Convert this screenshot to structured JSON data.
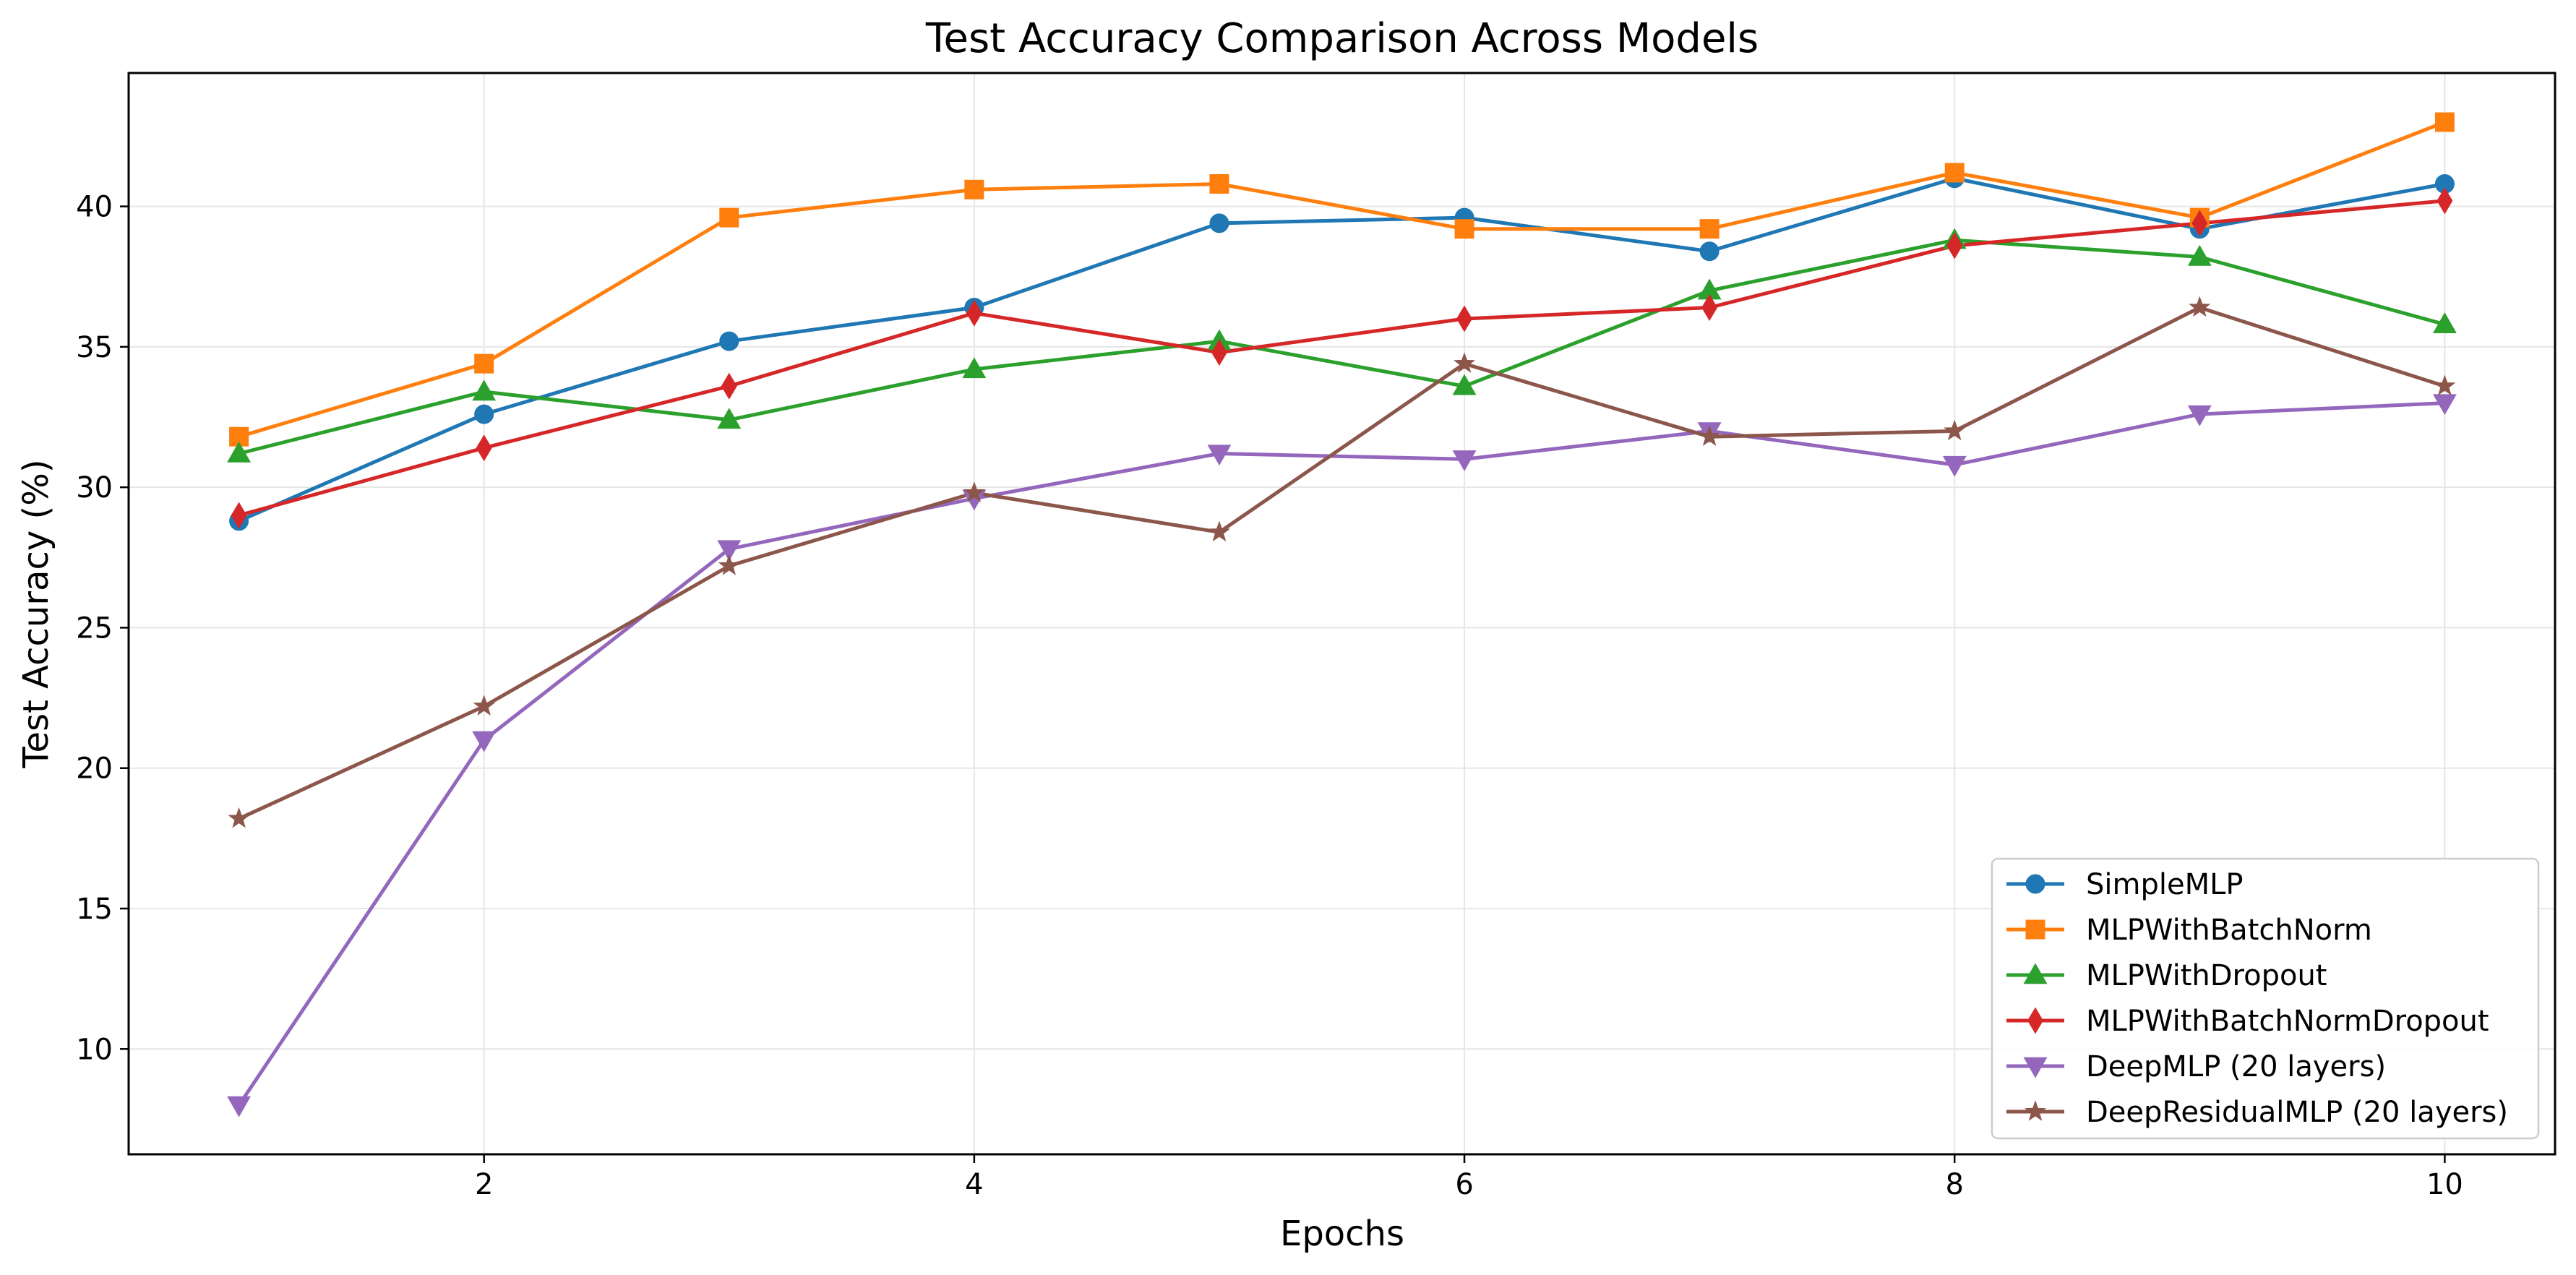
{
  "chart_data": {
    "type": "line",
    "title": "Test Accuracy Comparison Across Models",
    "xlabel": "Epochs",
    "ylabel": "Test Accuracy (%)",
    "xlim": [
      0.55,
      10.45
    ],
    "ylim": [
      6.25,
      44.75
    ],
    "xticks": [
      2,
      4,
      6,
      8,
      10
    ],
    "yticks": [
      10,
      15,
      20,
      25,
      30,
      35,
      40
    ],
    "grid": true,
    "legend_position": "lower-right",
    "x": [
      1,
      2,
      3,
      4,
      5,
      6,
      7,
      8,
      9,
      10
    ],
    "series": [
      {
        "name": "SimpleMLP",
        "color": "#1f77b4",
        "marker": "circle",
        "values": [
          28.8,
          32.6,
          35.2,
          36.4,
          39.4,
          39.6,
          38.4,
          41.0,
          39.2,
          40.8
        ]
      },
      {
        "name": "MLPWithBatchNorm",
        "color": "#ff7f0e",
        "marker": "square",
        "values": [
          31.8,
          34.4,
          39.6,
          40.6,
          40.8,
          39.2,
          39.2,
          41.2,
          39.6,
          43.0
        ]
      },
      {
        "name": "MLPWithDropout",
        "color": "#2ca02c",
        "marker": "triangle-up",
        "values": [
          31.2,
          33.4,
          32.4,
          34.2,
          35.2,
          33.6,
          37.0,
          38.8,
          38.2,
          35.8
        ]
      },
      {
        "name": "MLPWithBatchNormDropout",
        "color": "#d62728",
        "marker": "diamond",
        "values": [
          29.0,
          31.4,
          33.6,
          36.2,
          34.8,
          36.0,
          36.4,
          38.6,
          39.4,
          40.2
        ]
      },
      {
        "name": "DeepMLP (20 layers)",
        "color": "#9467bd",
        "marker": "triangle-down",
        "values": [
          8.0,
          21.0,
          27.8,
          29.6,
          31.2,
          31.0,
          32.0,
          30.8,
          32.6,
          33.0
        ]
      },
      {
        "name": "DeepResidualMLP (20 layers)",
        "color": "#8c564b",
        "marker": "star",
        "values": [
          18.2,
          22.2,
          27.2,
          29.8,
          28.4,
          34.4,
          31.8,
          32.0,
          36.4,
          33.6
        ]
      }
    ]
  }
}
